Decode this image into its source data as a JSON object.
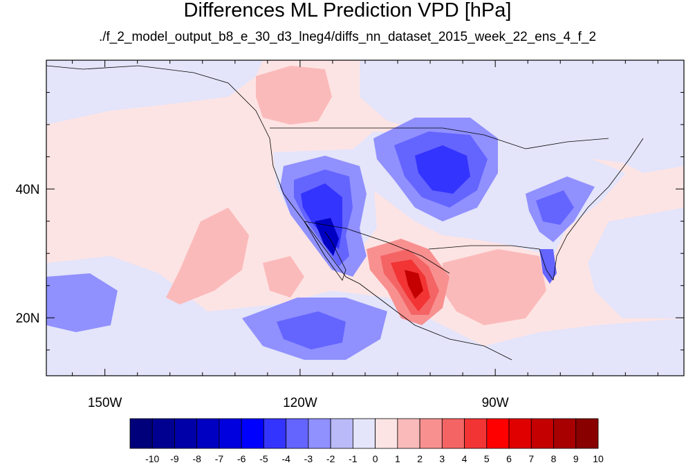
{
  "title": "Differences ML Prediction VPD [hPa]",
  "subtitle": "./f_2_model_output_b8_e_30_d3_lneg4/diffs_nn_dataset_2015_week_22_ens_4_f_2",
  "axes": {
    "x_ticks": [
      {
        "value": -150,
        "label": "150W"
      },
      {
        "value": -120,
        "label": "120W"
      },
      {
        "value": -90,
        "label": "90W"
      }
    ],
    "y_ticks": [
      {
        "value": 40,
        "label": "40N"
      },
      {
        "value": 20,
        "label": "20N"
      }
    ],
    "lon_range": [
      -159,
      -61
    ],
    "lat_range": [
      11,
      60
    ]
  },
  "colorbar": {
    "labels": [
      "-10",
      "-9",
      "-8",
      "-7",
      "-6",
      "-5",
      "-4",
      "-3",
      "-2",
      "-1",
      "0",
      "1",
      "2",
      "3",
      "4",
      "5",
      "6",
      "7",
      "8",
      "9",
      "10"
    ],
    "colors": [
      "#00007a",
      "#000090",
      "#0000a8",
      "#0000c2",
      "#0000de",
      "#0000ff",
      "#3434ff",
      "#6464ff",
      "#9090ff",
      "#babaf8",
      "#e4e4fa",
      "#fde4e4",
      "#fbbaba",
      "#f89090",
      "#f46464",
      "#f23434",
      "#ff0000",
      "#e00000",
      "#c40000",
      "#a80000",
      "#880000"
    ]
  },
  "colors": {
    "ocean_base": "#fde4e4",
    "land_base": "#e4e4fa"
  }
}
